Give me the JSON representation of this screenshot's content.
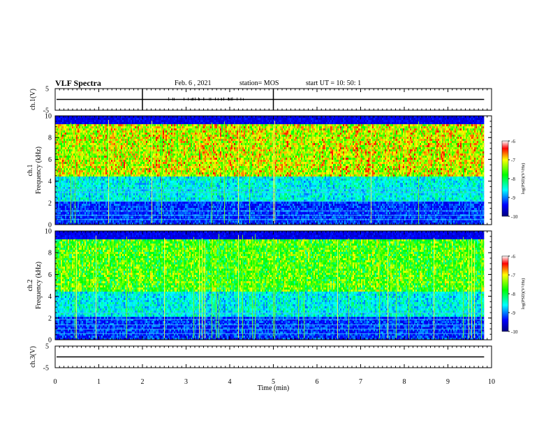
{
  "header": {
    "title": "VLF Spectra",
    "date": "Feb. 6  , 2021",
    "station": "station= MOS",
    "start": "start  UT  =   10: 50: 1"
  },
  "chart_data": [
    {
      "type": "line",
      "name": "ch1-waveform",
      "ylabel": "ch.1(V)",
      "ylim": [
        -5,
        5
      ],
      "yticks": [
        "5",
        "-5"
      ],
      "xlim": [
        0,
        10
      ],
      "baseline": 0
    },
    {
      "type": "heatmap",
      "name": "ch1-spectrogram",
      "ylabel_lines": [
        "ch.1",
        "Frequency  (kHz)"
      ],
      "ylim": [
        0,
        10
      ],
      "yticks": [
        "0",
        "2",
        "4",
        "6",
        "8",
        "10"
      ],
      "xlim": [
        0,
        10
      ],
      "colorbar": {
        "label": "log(PSD)(V²/Hz)",
        "range": [
          -10,
          -6
        ],
        "ticks": [
          "-6",
          "-7",
          "-8",
          "-9",
          "-10"
        ]
      }
    },
    {
      "type": "heatmap",
      "name": "ch2-spectrogram",
      "ylabel_lines": [
        "ch.2",
        "Frequency  (kHz)"
      ],
      "ylim": [
        0,
        10
      ],
      "yticks": [
        "0",
        "2",
        "4",
        "6",
        "8",
        "10"
      ],
      "xlim": [
        0,
        10
      ],
      "colorbar": {
        "label": "log(PSD)(V²/Hz)",
        "range": [
          -10,
          -6
        ],
        "ticks": [
          "-6",
          "-7",
          "-8",
          "-9",
          "-10"
        ]
      }
    },
    {
      "type": "line",
      "name": "ch3-waveform",
      "ylabel": "ch.3(V)",
      "ylim": [
        -5,
        5
      ],
      "yticks": [
        "5",
        "-5"
      ],
      "xlim": [
        0,
        10
      ],
      "baseline": 0
    }
  ],
  "x_axis": {
    "label": "Time  (min)",
    "range": [
      0,
      10
    ],
    "ticks": [
      "0",
      "1",
      "2",
      "3",
      "4",
      "5",
      "6",
      "7",
      "8",
      "9",
      "10"
    ]
  }
}
